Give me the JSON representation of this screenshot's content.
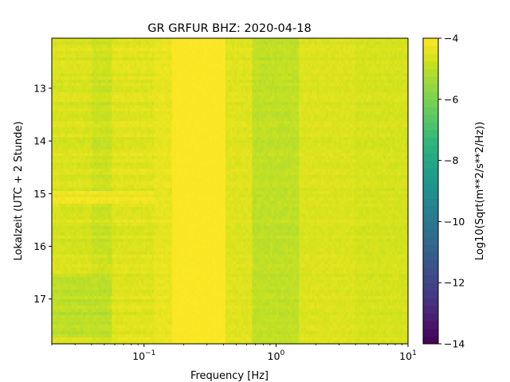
{
  "chart_data": {
    "type": "heatmap",
    "title": "GR GRFUR  BHZ: 2020-04-18",
    "xlabel": "Frequency [Hz]",
    "ylabel": "Lokalzeit (UTC + 2 Stunde)",
    "x_scale": "log",
    "xlim": [
      0.02,
      10
    ],
    "x_ticks": [
      {
        "value": 0.1,
        "base": "10",
        "exp": "−1"
      },
      {
        "value": 1,
        "base": "10",
        "exp": "0"
      },
      {
        "value": 10,
        "base": "10",
        "exp": "1"
      }
    ],
    "ylim": [
      12.05,
      17.85
    ],
    "y_inverted": true,
    "y_ticks": [
      "13",
      "14",
      "15",
      "16",
      "17"
    ],
    "colorbar": {
      "label": "Log10(Sqrt(m**2/s**2/Hz))",
      "range": [
        -14,
        -4
      ],
      "ticks": [
        "−4",
        "−6",
        "−8",
        "−10",
        "−12",
        "−14"
      ],
      "colormap": "viridis"
    },
    "frequency_bands": [
      {
        "f_min": 0.02,
        "f_max": 0.04,
        "level": -4.6
      },
      {
        "f_min": 0.04,
        "f_max": 0.058,
        "level": -4.8
      },
      {
        "f_min": 0.058,
        "f_max": 0.12,
        "level": -4.5
      },
      {
        "f_min": 0.12,
        "f_max": 0.165,
        "level": -4.35
      },
      {
        "f_min": 0.165,
        "f_max": 0.42,
        "level": -4.05
      },
      {
        "f_min": 0.42,
        "f_max": 0.65,
        "level": -4.5
      },
      {
        "f_min": 0.65,
        "f_max": 1.5,
        "level": -4.95
      },
      {
        "f_min": 1.5,
        "f_max": 4.0,
        "level": -4.55
      },
      {
        "f_min": 4.0,
        "f_max": 10,
        "level": -4.65
      }
    ],
    "time_features": [
      {
        "time_start": 14.95,
        "time_end": 15.2,
        "f_max": 0.12,
        "level": -4.2
      },
      {
        "time_start": 16.6,
        "time_end": 17.7,
        "f_max": 0.058,
        "level": -5.0
      }
    ]
  }
}
